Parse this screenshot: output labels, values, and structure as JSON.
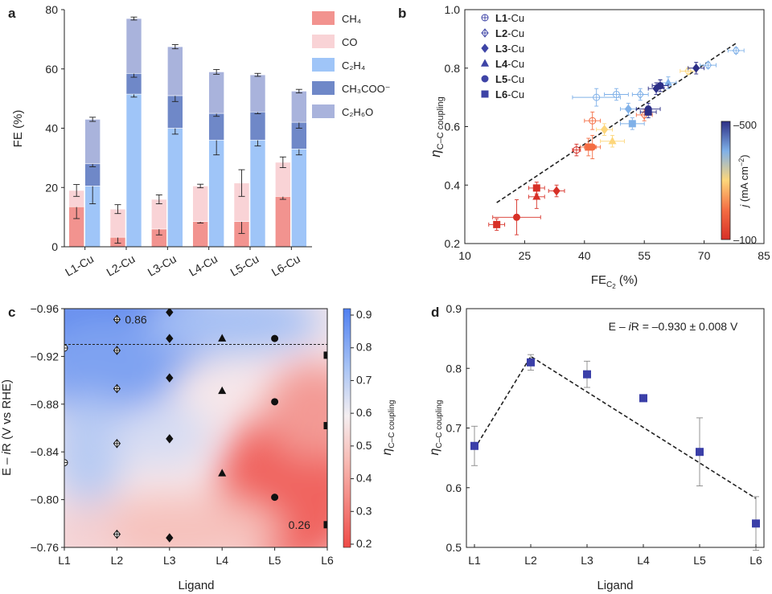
{
  "colors": {
    "CH4": "#f2938f",
    "CO": "#f9d3d6",
    "C2H4": "#9fc5f8",
    "CH3COO": "#6f88c8",
    "C2H6O": "#a9b3dc",
    "scale": [
      "#d73027",
      "#f46d43",
      "#fdd67a",
      "#7fb0e8",
      "#2c2f86"
    ]
  },
  "chart_data": [
    {
      "panel": "a",
      "type": "bar",
      "ylabel": "FE (%)",
      "ylim": [
        0,
        80
      ],
      "yticks": [
        "0",
        "20",
        "40",
        "60",
        "80"
      ],
      "categories": [
        "L1-Cu",
        "L2-Cu",
        "L3-Cu",
        "L4-Cu",
        "L5-Cu",
        "L6-Cu"
      ],
      "left_series": [
        {
          "name": "CH4",
          "label": "CH₄",
          "values": [
            13.5,
            3.2,
            6.0,
            8.5,
            8.5,
            17.0
          ],
          "err": [
            4,
            2,
            2,
            0.5,
            4,
            1
          ]
        },
        {
          "name": "CO",
          "label": "CO",
          "values": [
            5.5,
            9.5,
            10.0,
            12.0,
            13.0,
            11.5
          ],
          "err": [
            2,
            1.5,
            1.5,
            0.6,
            4.5,
            1.8
          ]
        }
      ],
      "right_series": [
        {
          "name": "C2H4",
          "label": "C₂H₄",
          "values": [
            20.5,
            51.5,
            40.0,
            36.0,
            36.0,
            33.0
          ],
          "err": [
            6,
            1,
            2,
            5,
            2,
            2
          ]
        },
        {
          "name": "CH3COO",
          "label": "CH₃COO⁻",
          "values": [
            7.5,
            7.0,
            11.0,
            9.0,
            9.5,
            9.0
          ],
          "err": [
            1,
            1.3,
            2,
            1,
            0.6,
            2
          ]
        },
        {
          "name": "C2H6O",
          "label": "C₂H₆O",
          "values": [
            15.0,
            18.5,
            16.5,
            14.0,
            12.5,
            10.5
          ],
          "err": [
            0.7,
            0.5,
            0.7,
            0.8,
            0.5,
            0.6
          ]
        }
      ]
    },
    {
      "panel": "b",
      "type": "scatter",
      "xlabel_main": "FE",
      "xlabel_sub": "C",
      "xlabel_subsub": "2",
      "xlabel_unit": " (%)",
      "ylabel_main": "η",
      "ylabel_sub": "C–C coupling",
      "xlim": [
        10,
        85
      ],
      "ylim": [
        0.2,
        1.0
      ],
      "xticks": [
        "10",
        "25",
        "40",
        "55",
        "70",
        "85"
      ],
      "yticks": [
        "0.2",
        "0.4",
        "0.6",
        "0.8",
        "1.0"
      ],
      "legend": [
        {
          "bold": "L1",
          "rest": "-Cu",
          "marker": "circle-cross"
        },
        {
          "bold": "L2",
          "rest": "-Cu",
          "marker": "diamond-cross"
        },
        {
          "bold": "L3",
          "rest": "-Cu",
          "marker": "diamond"
        },
        {
          "bold": "L4",
          "rest": "-Cu",
          "marker": "triangle"
        },
        {
          "bold": "L5",
          "rest": "-Cu",
          "marker": "circle"
        },
        {
          "bold": "L6",
          "rest": "-Cu",
          "marker": "square"
        }
      ],
      "colorbar": {
        "label_main": "j",
        "label_unit": " (mA cm",
        "label_sup": "−2",
        "label_close": ")",
        "top": "–500",
        "bottom": "–100"
      },
      "fit_line": {
        "x": [
          18,
          78
        ],
        "y": [
          0.34,
          0.885
        ]
      },
      "points": [
        {
          "m": "circle-cross",
          "x": 43,
          "y": 0.7,
          "c": 3,
          "ex": 6,
          "ey": 0.03
        },
        {
          "m": "circle-cross",
          "x": 48,
          "y": 0.71,
          "c": 3,
          "ex": 3,
          "ey": 0.02
        },
        {
          "m": "circle-cross",
          "x": 42,
          "y": 0.62,
          "c": 1,
          "ex": 2,
          "ey": 0.03
        },
        {
          "m": "circle-cross",
          "x": 38,
          "y": 0.52,
          "c": 0,
          "ex": 1,
          "ey": 0.02
        },
        {
          "m": "diamond-cross",
          "x": 78,
          "y": 0.86,
          "c": 3,
          "ex": 2,
          "ey": 0.01
        },
        {
          "m": "diamond-cross",
          "x": 71,
          "y": 0.81,
          "c": 3,
          "ex": 2,
          "ey": 0.01
        },
        {
          "m": "diamond-cross",
          "x": 66,
          "y": 0.79,
          "c": 2,
          "ex": 2,
          "ey": 0.01
        },
        {
          "m": "diamond-cross",
          "x": 55,
          "y": 0.64,
          "c": 1,
          "ex": 2,
          "ey": 0.02
        },
        {
          "m": "diamond-cross",
          "x": 54,
          "y": 0.71,
          "c": 3,
          "ex": 2,
          "ey": 0.02
        },
        {
          "m": "diamond",
          "x": 68,
          "y": 0.8,
          "c": 4,
          "ex": 2,
          "ey": 0.02
        },
        {
          "m": "diamond",
          "x": 58,
          "y": 0.73,
          "c": 4,
          "ex": 2,
          "ey": 0.02
        },
        {
          "m": "diamond",
          "x": 51,
          "y": 0.66,
          "c": 3,
          "ex": 2,
          "ey": 0.02
        },
        {
          "m": "diamond",
          "x": 45,
          "y": 0.59,
          "c": 2,
          "ex": 2,
          "ey": 0.02
        },
        {
          "m": "diamond",
          "x": 33,
          "y": 0.38,
          "c": 0,
          "ex": 2,
          "ey": 0.02
        },
        {
          "m": "triangle",
          "x": 61,
          "y": 0.75,
          "c": 3,
          "ex": 2,
          "ey": 0.02
        },
        {
          "m": "triangle",
          "x": 59,
          "y": 0.74,
          "c": 4,
          "ex": 2,
          "ey": 0.02
        },
        {
          "m": "triangle",
          "x": 47,
          "y": 0.55,
          "c": 2,
          "ex": 3,
          "ey": 0.02
        },
        {
          "m": "triangle",
          "x": 28,
          "y": 0.36,
          "c": 0,
          "ex": 2,
          "ey": 0.04
        },
        {
          "m": "circle",
          "x": 59,
          "y": 0.74,
          "c": 4,
          "ex": 2,
          "ey": 0.02
        },
        {
          "m": "circle",
          "x": 56,
          "y": 0.66,
          "c": 4,
          "ex": 3,
          "ey": 0.02
        },
        {
          "m": "circle",
          "x": 42,
          "y": 0.53,
          "c": 1,
          "ex": 2,
          "ey": 0.04
        },
        {
          "m": "circle",
          "x": 23,
          "y": 0.29,
          "c": 0,
          "ex": 6,
          "ey": 0.06
        },
        {
          "m": "square",
          "x": 56,
          "y": 0.65,
          "c": 4,
          "ex": 2,
          "ey": 0.02
        },
        {
          "m": "square",
          "x": 52,
          "y": 0.61,
          "c": 3,
          "ex": 3,
          "ey": 0.02
        },
        {
          "m": "square",
          "x": 41,
          "y": 0.53,
          "c": 1,
          "ex": 2,
          "ey": 0.03
        },
        {
          "m": "square",
          "x": 28,
          "y": 0.39,
          "c": 0,
          "ex": 2,
          "ey": 0.02
        },
        {
          "m": "square",
          "x": 18,
          "y": 0.265,
          "c": 0,
          "ex": 2,
          "ey": 0.02
        }
      ]
    },
    {
      "panel": "c",
      "type": "heatmap",
      "xlabel": "Ligand",
      "ylabel_main": "E – ",
      "ylabel_italic": "i",
      "ylabel_rest": "R (V vs RHE)",
      "categories": [
        "L1",
        "L2",
        "L3",
        "L4",
        "L5",
        "L6"
      ],
      "ylim": [
        -0.76,
        -0.96
      ],
      "yticks": [
        "−0.76",
        "−0.80",
        "−0.84",
        "−0.88",
        "−0.92",
        "−0.96"
      ],
      "ref_line": -0.93,
      "colorbar": {
        "label_main": "η",
        "label_sub": "C–C coupling",
        "ticks": [
          "0.2",
          "0.3",
          "0.4",
          "0.5",
          "0.6",
          "0.7",
          "0.8",
          "0.9"
        ]
      },
      "annotations": [
        {
          "text": "0.86",
          "x": 2,
          "y": -0.951
        },
        {
          "text": "0.26",
          "x": 5.5,
          "y": -0.779
        }
      ],
      "markers": [
        {
          "m": "circle-cross",
          "x": 1,
          "y": -0.927
        },
        {
          "m": "circle-cross",
          "x": 1,
          "y": -0.831
        },
        {
          "m": "diamond-cross",
          "x": 2,
          "y": -0.951
        },
        {
          "m": "diamond-cross",
          "x": 2,
          "y": -0.925
        },
        {
          "m": "diamond-cross",
          "x": 2,
          "y": -0.893
        },
        {
          "m": "diamond-cross",
          "x": 2,
          "y": -0.847
        },
        {
          "m": "diamond-cross",
          "x": 2,
          "y": -0.771
        },
        {
          "m": "diamond",
          "x": 3,
          "y": -0.957
        },
        {
          "m": "diamond",
          "x": 3,
          "y": -0.935
        },
        {
          "m": "diamond",
          "x": 3,
          "y": -0.902
        },
        {
          "m": "diamond",
          "x": 3,
          "y": -0.851
        },
        {
          "m": "diamond",
          "x": 3,
          "y": -0.768
        },
        {
          "m": "triangle",
          "x": 4,
          "y": -0.935
        },
        {
          "m": "triangle",
          "x": 4,
          "y": -0.891
        },
        {
          "m": "triangle",
          "x": 4,
          "y": -0.822
        },
        {
          "m": "circle",
          "x": 5,
          "y": -0.935
        },
        {
          "m": "circle",
          "x": 5,
          "y": -0.882
        },
        {
          "m": "circle",
          "x": 5,
          "y": -0.802
        },
        {
          "m": "square",
          "x": 6,
          "y": -0.921
        },
        {
          "m": "square",
          "x": 6,
          "y": -0.862
        },
        {
          "m": "square",
          "x": 6,
          "y": -0.779
        }
      ]
    },
    {
      "panel": "d",
      "type": "scatter",
      "xlabel": "Ligand",
      "ylabel_main": "η",
      "ylabel_sub": "C–C coupling",
      "ylim": [
        0.5,
        0.9
      ],
      "yticks": [
        "0.5",
        "0.6",
        "0.7",
        "0.8",
        "0.9"
      ],
      "categories": [
        "L1",
        "L2",
        "L3",
        "L4",
        "L5",
        "L6"
      ],
      "annotation": {
        "pre": "E – ",
        "italic": "i",
        "post": "R = –0.930 ± 0.008 V"
      },
      "values": [
        0.67,
        0.81,
        0.79,
        0.75,
        0.66,
        0.54
      ],
      "err": [
        0.033,
        0.013,
        0.022,
        0.0,
        0.057,
        0.045
      ],
      "fit_line": {
        "x": [
          1,
          2,
          6
        ],
        "y": [
          0.665,
          0.82,
          0.582
        ]
      },
      "marker_color": "#3b3fa8"
    }
  ],
  "panel_labels": [
    "a",
    "b",
    "c",
    "d"
  ]
}
